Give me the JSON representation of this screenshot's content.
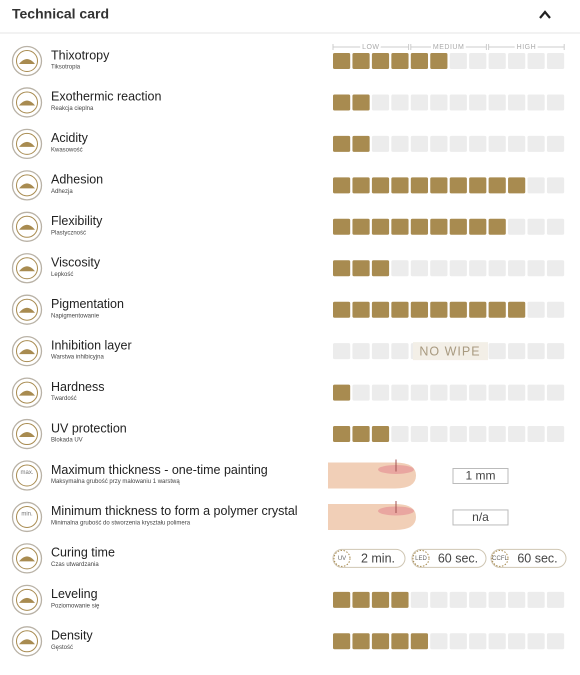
{
  "header": {
    "title": "Technical card"
  },
  "scale": {
    "labels": [
      "LOW",
      "MEDIUM",
      "HIGH"
    ],
    "cells": 12
  },
  "rows": [
    {
      "name": "Thixotropy",
      "sub": "Tiksotropia",
      "level": 6
    },
    {
      "name": "Exothermic reaction",
      "sub": "Reakcja cieplna",
      "level": 2
    },
    {
      "name": "Acidity",
      "sub": "Kwasowość",
      "level": 2
    },
    {
      "name": "Adhesion",
      "sub": "Adhezja",
      "level": 10
    },
    {
      "name": "Flexibility",
      "sub": "Plastyczność",
      "level": 9
    },
    {
      "name": "Viscosity",
      "sub": "Lepkość",
      "level": 3
    },
    {
      "name": "Pigmentation",
      "sub": "Napigmentowanie",
      "level": 10
    },
    {
      "name": "Inhibition layer",
      "sub": "Warstwa inhibicyjna",
      "text": "NO WIPE"
    },
    {
      "name": "Hardness",
      "sub": "Twardość",
      "level": 1
    },
    {
      "name": "UV protection",
      "sub": "Blokada UV",
      "level": 3
    },
    {
      "name": "Maximum thickness - one-time painting",
      "sub": "Maksymalna grubość przy malowaniu 1 warstwą",
      "icon": "max.",
      "value": "1 mm"
    },
    {
      "name": "Minimum thickness to form a polymer crystal",
      "sub": "Minimalna grubość do stworzenia kryształu polimera",
      "icon": "min.",
      "value": "n/a"
    },
    {
      "name": "Curing time",
      "sub": "Czas utwardzania",
      "times": [
        {
          "label": "UV",
          "value": "2 min."
        },
        {
          "label": "LED",
          "value": "60 sec."
        },
        {
          "label": "CCFL",
          "value": "60 sec."
        }
      ]
    },
    {
      "name": "Leveling",
      "sub": "Poziomowanie się",
      "level": 4
    },
    {
      "name": "Density",
      "sub": "Gęstość",
      "level": 5
    }
  ]
}
